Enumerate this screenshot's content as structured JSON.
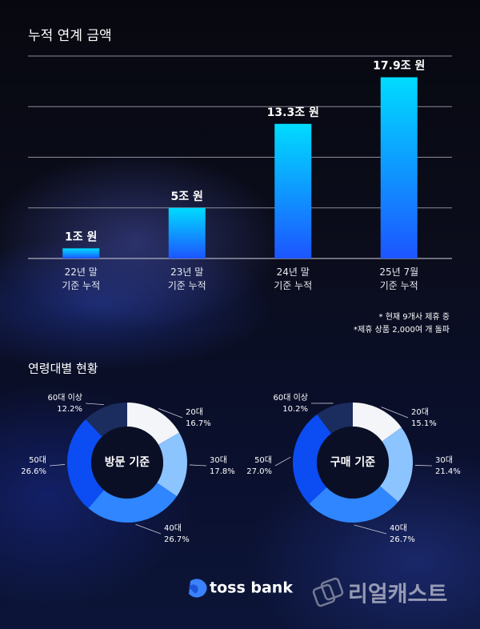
{
  "section_title": "연령대별 현황",
  "logo": "toss bank",
  "watermark": "리얼캐스트",
  "chart_data": [
    {
      "type": "bar",
      "title": "누적 연계 금액",
      "categories": [
        "22년 말\n기준 누적",
        "23년 말\n기준 누적",
        "24년 말\n기준 누적",
        "25년 7월\n기준 누적"
      ],
      "values": [
        1,
        5,
        13.3,
        17.9
      ],
      "value_labels": [
        "1조 원",
        "5조 원",
        "13.3조 원",
        "17.9조 원"
      ],
      "gradient": [
        "#00dcff",
        "#1d55ff"
      ],
      "ylim": [
        0,
        20
      ],
      "yticks": [
        0,
        5,
        10,
        15,
        20
      ],
      "grid": true,
      "notes": [
        "* 현재 9개사 제휴 중",
        "*제휴 상품 2,000여 개 돌파"
      ]
    },
    {
      "type": "donut",
      "center_label": "방문 기준",
      "categories": [
        "20대",
        "30대",
        "40대",
        "50대",
        "60대 이상"
      ],
      "values": [
        16.7,
        17.8,
        26.7,
        26.6,
        12.2
      ],
      "value_labels": [
        "16.7%",
        "17.8%",
        "26.7%",
        "26.6%",
        "12.2%"
      ],
      "colors": [
        "#f4f5f8",
        "#8cc4ff",
        "#2f86ff",
        "#0b4df2",
        "#1b2c5e"
      ]
    },
    {
      "type": "donut",
      "center_label": "구매 기준",
      "categories": [
        "20대",
        "30대",
        "40대",
        "50대",
        "60대 이상"
      ],
      "values": [
        15.1,
        21.4,
        26.7,
        27.0,
        10.2
      ],
      "value_labels": [
        "15.1%",
        "21.4%",
        "26.7%",
        "27.0%",
        "10.2%"
      ],
      "colors": [
        "#f4f5f8",
        "#8cc4ff",
        "#2f86ff",
        "#0b4df2",
        "#1b2c5e"
      ]
    }
  ]
}
